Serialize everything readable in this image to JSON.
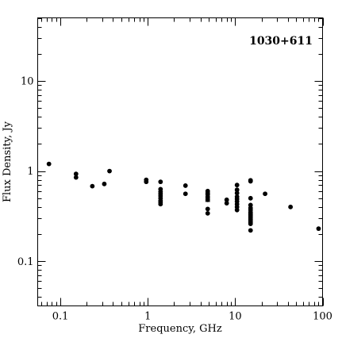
{
  "chart_data": {
    "type": "scatter",
    "title": "",
    "annotation": "1030+611",
    "xlabel": "Frequency, GHz",
    "ylabel": "Flux Density, Jy",
    "xscale": "log",
    "yscale": "log",
    "xlim": [
      0.055,
      100
    ],
    "ylim": [
      0.032,
      50
    ],
    "grid": false,
    "legend": "none",
    "x_tick_labels": [
      "0.1",
      "1",
      "10",
      "100"
    ],
    "y_tick_labels": [
      "0.1",
      "1",
      "10"
    ],
    "x_major_ticks": [
      0.1,
      1,
      10,
      100
    ],
    "y_major_ticks": [
      0.1,
      1,
      10
    ],
    "marker_color": "#000000",
    "series": [
      {
        "x": [
          0.074,
          0.151,
          0.151,
          0.232,
          0.318,
          0.365,
          0.96,
          0.96,
          1.4,
          1.4,
          1.4,
          1.4,
          1.4,
          1.4,
          1.4,
          1.4,
          1.4,
          2.7,
          2.7,
          4.85,
          4.85,
          4.85,
          4.85,
          4.85,
          4.85,
          4.85,
          8.0,
          8.0,
          10.5,
          10.5,
          10.5,
          10.5,
          10.5,
          10.5,
          10.5,
          10.5,
          10.5,
          15.0,
          15.0,
          15.0,
          15.0,
          15.0,
          15.0,
          15.0,
          15.0,
          15.0,
          15.0,
          15.0,
          15.0,
          15.0,
          15.0,
          15.0,
          15.0,
          15.0,
          22.0,
          43.0,
          90.0
        ],
        "y": [
          1.2,
          0.93,
          0.85,
          0.68,
          0.72,
          1.0,
          0.8,
          0.76,
          0.76,
          0.63,
          0.59,
          0.56,
          0.53,
          0.5,
          0.47,
          0.45,
          0.43,
          0.69,
          0.56,
          0.6,
          0.57,
          0.55,
          0.52,
          0.48,
          0.38,
          0.34,
          0.48,
          0.44,
          0.7,
          0.62,
          0.57,
          0.52,
          0.49,
          0.46,
          0.43,
          0.4,
          0.37,
          0.79,
          0.77,
          0.5,
          0.42,
          0.39,
          0.37,
          0.35,
          0.34,
          0.33,
          0.32,
          0.31,
          0.3,
          0.29,
          0.28,
          0.27,
          0.26,
          0.22,
          0.56,
          0.4,
          0.23
        ]
      }
    ],
    "error_bar": {
      "x": 4.85,
      "y": 0.48,
      "low": 0.46,
      "high": 0.5
    }
  }
}
